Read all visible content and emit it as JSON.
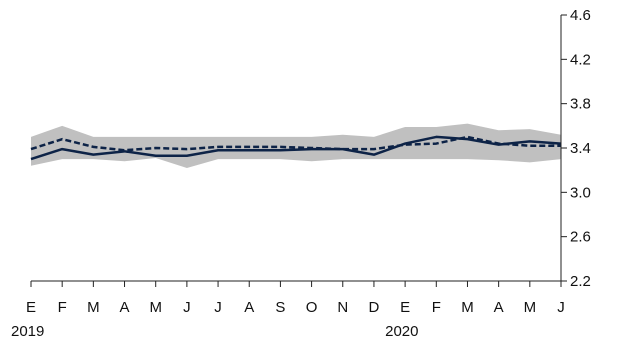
{
  "chart_data": {
    "type": "line",
    "categories": [
      "E",
      "F",
      "M",
      "A",
      "M",
      "J",
      "J",
      "A",
      "S",
      "O",
      "N",
      "D",
      "E",
      "F",
      "M",
      "A",
      "M",
      "J"
    ],
    "year_labels": [
      {
        "label": "2019",
        "index": 0
      },
      {
        "label": "2020",
        "index": 12
      }
    ],
    "series": [
      {
        "style": "solid",
        "color": "#0d2347",
        "values": [
          3.3,
          3.39,
          3.34,
          3.37,
          3.33,
          3.33,
          3.38,
          3.38,
          3.38,
          3.39,
          3.39,
          3.34,
          3.44,
          3.5,
          3.48,
          3.43,
          3.46,
          3.44
        ]
      },
      {
        "style": "dashed",
        "color": "#0d2347",
        "values": [
          3.39,
          3.48,
          3.41,
          3.38,
          3.4,
          3.39,
          3.41,
          3.41,
          3.41,
          3.4,
          3.39,
          3.39,
          3.43,
          3.44,
          3.5,
          3.44,
          3.42,
          3.42
        ]
      }
    ],
    "band": {
      "color": "#c0c0c0",
      "lower": [
        3.24,
        3.3,
        3.3,
        3.28,
        3.31,
        3.22,
        3.3,
        3.3,
        3.3,
        3.28,
        3.3,
        3.3,
        3.3,
        3.3,
        3.3,
        3.29,
        3.27,
        3.3
      ],
      "upper": [
        3.5,
        3.6,
        3.5,
        3.5,
        3.5,
        3.5,
        3.5,
        3.5,
        3.5,
        3.5,
        3.52,
        3.5,
        3.59,
        3.59,
        3.62,
        3.56,
        3.57,
        3.52
      ]
    },
    "y_axis": {
      "position": "right",
      "ticks": [
        "2.2",
        "2.6",
        "3.0",
        "3.4",
        "3.8",
        "4.2",
        "4.6"
      ],
      "ylim": [
        2.2,
        4.6
      ]
    },
    "title": "",
    "xlabel": "",
    "ylabel": "",
    "grid": false,
    "legend": "none"
  }
}
